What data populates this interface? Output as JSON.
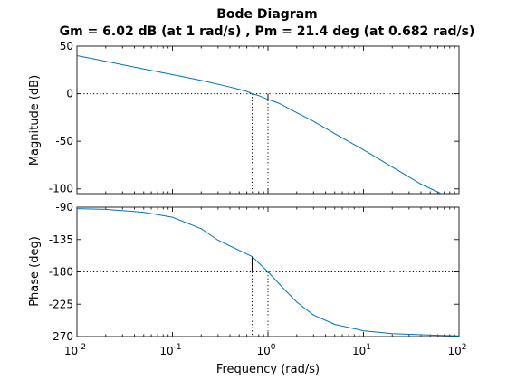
{
  "chart_data": {
    "type": "line",
    "title": "Bode Diagram",
    "subtitle": "Gm = 6.02 dB (at 1 rad/s) ,  Pm = 21.4 deg (at 0.682 rad/s)",
    "xlabel": "Frequency  (rad/s)",
    "x_scale": "log",
    "xlim": [
      0.01,
      100
    ],
    "x_ticks": [
      {
        "label_base": "10",
        "label_exp": "-2"
      },
      {
        "label_base": "10",
        "label_exp": "-1"
      },
      {
        "label_base": "10",
        "label_exp": "0"
      },
      {
        "label_base": "10",
        "label_exp": "1"
      },
      {
        "label_base": "10",
        "label_exp": "2"
      }
    ],
    "series_color": "#0072bd",
    "panels": [
      {
        "name": "magnitude",
        "ylabel": "Magnitude (dB)",
        "ylim": [
          -105,
          50
        ],
        "yticks": [
          50,
          0,
          -50,
          -100
        ],
        "reference_line": 0,
        "x": [
          0.01,
          0.02,
          0.05,
          0.1,
          0.2,
          0.4,
          0.6,
          0.682,
          0.8,
          1,
          1.3,
          2,
          3,
          5,
          10,
          20,
          40,
          65
        ],
        "y": [
          40,
          34,
          26,
          20,
          14,
          7,
          2.5,
          0,
          -2,
          -6,
          -10,
          -20,
          -29,
          -42,
          -59,
          -77,
          -95,
          -105
        ]
      },
      {
        "name": "phase",
        "ylabel": "Phase (deg)",
        "ylim": [
          -270,
          -90
        ],
        "yticks": [
          -90,
          -135,
          -180,
          -225,
          -270
        ],
        "reference_line": -180,
        "x": [
          0.01,
          0.02,
          0.05,
          0.1,
          0.2,
          0.3,
          0.5,
          0.682,
          1,
          1.5,
          2,
          3,
          5,
          10,
          20,
          50,
          100
        ],
        "y": [
          -92,
          -93,
          -97,
          -104,
          -120,
          -136,
          -150,
          -158.6,
          -180,
          -205,
          -222,
          -240,
          -253,
          -262,
          -266,
          -268,
          -269
        ]
      }
    ],
    "margin_markers": {
      "gain_margin": {
        "freq": 1,
        "db": 6.02
      },
      "phase_margin": {
        "freq": 0.682,
        "deg": 21.4
      }
    }
  }
}
